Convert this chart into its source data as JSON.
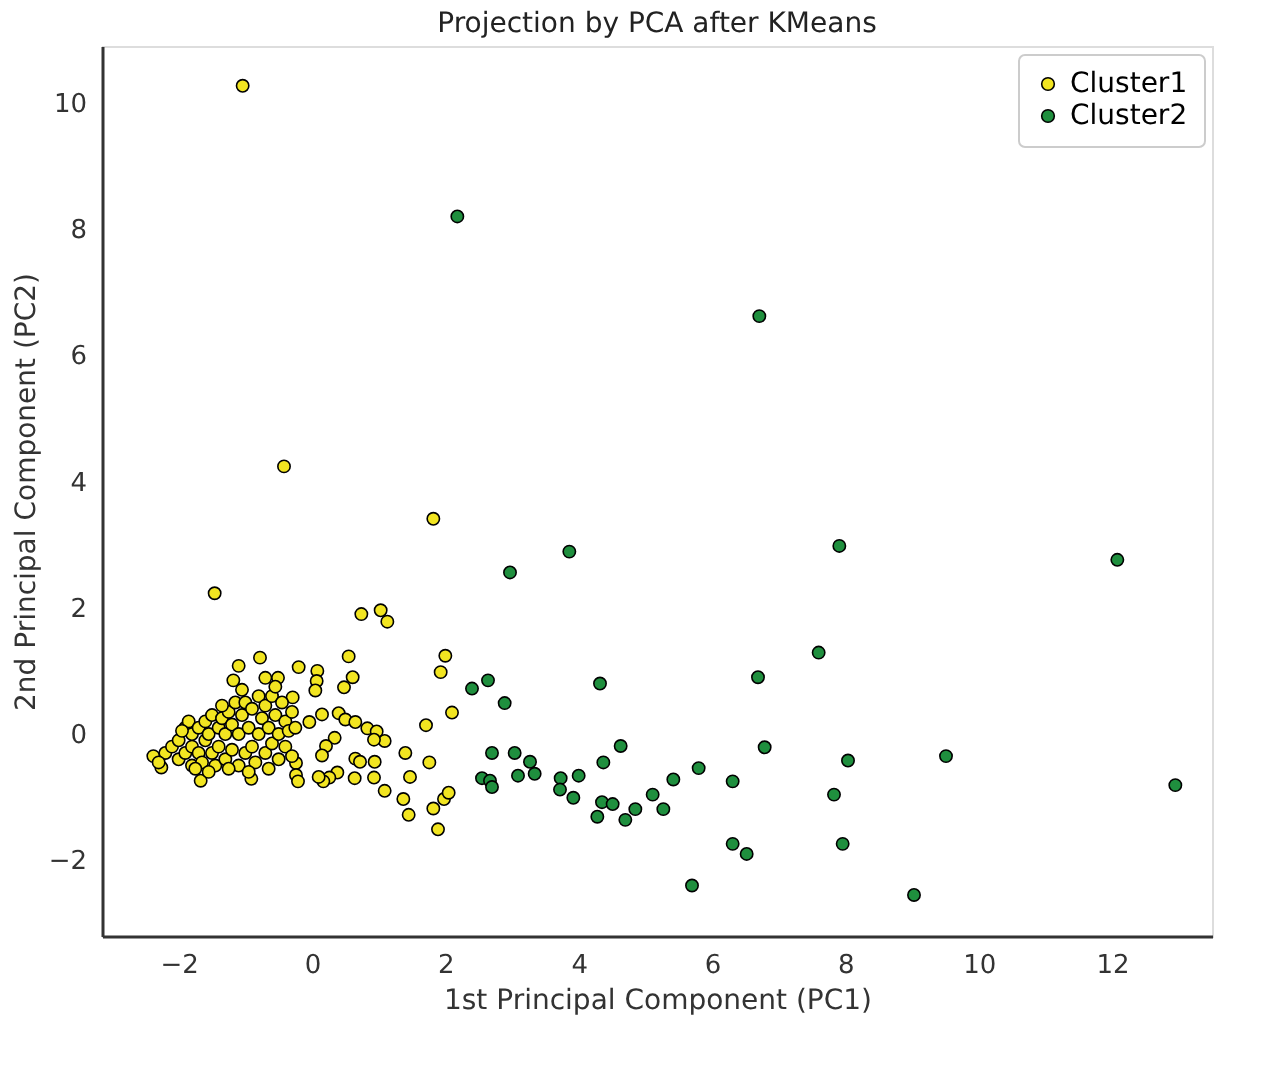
{
  "chart_data": {
    "type": "scatter",
    "title": "Projection by PCA after KMeans",
    "xlabel": "1st Principal Component (PC1)",
    "ylabel": "2nd Principal Component (PC2)",
    "xlim": [
      -3.15,
      13.5
    ],
    "ylim": [
      -3.2,
      10.9
    ],
    "xticks": [
      -2,
      0,
      2,
      4,
      6,
      8,
      10,
      12
    ],
    "yticks": [
      -2,
      0,
      2,
      4,
      6,
      8,
      10
    ],
    "grid": false,
    "legend": "top right",
    "marker": "circle",
    "series": [
      {
        "name": "Cluster1",
        "color": "#f2e521",
        "x": [
          -1.04,
          -0.42,
          1.82,
          -1.46,
          0.74,
          1.03,
          1.13,
          2.0,
          1.93,
          2.1,
          1.71,
          1.4,
          1.76,
          1.47,
          1.09,
          1.37,
          1.45,
          1.82,
          1.98,
          2.05,
          1.89,
          0.55,
          0.61,
          0.48,
          -0.2,
          0.08,
          0.07,
          0.05,
          -0.29,
          -0.78,
          -1.1,
          -1.18,
          -0.7,
          -0.51,
          -0.04,
          0.15,
          0.4,
          0.5,
          0.65,
          0.83,
          0.97,
          1.09,
          0.93,
          0.34,
          0.21,
          0.15,
          0.65,
          0.72,
          0.94,
          0.64,
          0.93,
          0.38,
          0.26,
          0.17,
          0.1,
          -0.24,
          -0.24,
          -0.21,
          -0.91,
          -1.67,
          -2.26,
          -2.38,
          -2.2,
          -2.1,
          -2.0,
          -2.0,
          -1.9,
          -1.9,
          -1.85,
          -1.8,
          -1.8,
          -1.8,
          -1.7,
          -1.7,
          -1.65,
          -1.6,
          -1.6,
          -1.55,
          -1.5,
          -1.5,
          -1.45,
          -1.4,
          -1.4,
          -1.35,
          -1.3,
          -1.3,
          -1.25,
          -1.2,
          -1.2,
          -1.15,
          -1.1,
          -1.1,
          -1.05,
          -1.0,
          -1.0,
          -0.95,
          -0.9,
          -0.9,
          -0.85,
          -0.8,
          -0.8,
          -0.75,
          -0.7,
          -0.7,
          -0.65,
          -0.6,
          -0.6,
          -0.55,
          -0.5,
          -0.5,
          -0.45,
          -0.4,
          -0.4,
          -0.35,
          -0.3,
          -0.3,
          -0.25,
          -1.75,
          -1.55,
          -1.25,
          -0.95,
          -0.65,
          -2.3,
          -1.95,
          -1.35,
          -1.05,
          -0.55
        ],
        "values": [
          10.27,
          4.24,
          3.41,
          2.23,
          1.9,
          1.96,
          1.78,
          1.24,
          0.98,
          0.34,
          0.14,
          -0.3,
          -0.45,
          -0.68,
          -0.9,
          -1.03,
          -1.28,
          -1.18,
          -1.03,
          -0.93,
          -1.51,
          1.23,
          0.9,
          0.74,
          1.06,
          1.0,
          0.84,
          0.69,
          0.58,
          1.21,
          1.08,
          0.85,
          0.89,
          0.89,
          0.19,
          0.31,
          0.33,
          0.23,
          0.19,
          0.09,
          0.04,
          -0.11,
          -0.09,
          -0.06,
          -0.19,
          -0.34,
          -0.39,
          -0.44,
          -0.44,
          -0.7,
          -0.69,
          -0.61,
          -0.69,
          -0.75,
          -0.68,
          -0.46,
          -0.65,
          -0.75,
          -0.71,
          -0.74,
          -0.53,
          -0.35,
          -0.3,
          -0.2,
          -0.4,
          -0.1,
          -0.3,
          0.1,
          0.2,
          -0.5,
          -0.2,
          0.0,
          -0.3,
          0.1,
          -0.45,
          -0.1,
          0.2,
          0.0,
          -0.3,
          0.3,
          -0.5,
          -0.2,
          0.1,
          0.25,
          -0.4,
          0.0,
          0.35,
          -0.25,
          0.15,
          0.5,
          -0.5,
          0.0,
          0.3,
          -0.3,
          0.5,
          0.1,
          -0.2,
          0.4,
          -0.45,
          0.0,
          0.6,
          0.25,
          -0.3,
          0.45,
          0.1,
          -0.15,
          0.6,
          0.3,
          -0.4,
          0.0,
          0.5,
          0.2,
          -0.2,
          0.05,
          0.35,
          -0.35,
          0.1,
          -0.55,
          -0.6,
          -0.55,
          -0.6,
          -0.55,
          -0.45,
          0.05,
          0.45,
          0.7,
          0.75
        ]
      },
      {
        "name": "Cluster2",
        "color": "#1f8f3e",
        "x": [
          2.18,
          6.71,
          2.97,
          3.86,
          7.91,
          12.08,
          7.6,
          6.69,
          4.32,
          2.4,
          2.64,
          2.89,
          4.63,
          6.79,
          2.7,
          3.04,
          3.27,
          3.34,
          3.09,
          2.55,
          2.67,
          2.7,
          3.73,
          4.0,
          3.72,
          3.92,
          4.37,
          4.35,
          4.51,
          4.28,
          4.7,
          4.85,
          5.11,
          5.27,
          5.42,
          5.8,
          6.31,
          8.04,
          9.51,
          12.95,
          7.83,
          7.96,
          6.31,
          6.52,
          5.7,
          9.03
        ],
        "values": [
          8.2,
          6.62,
          2.56,
          2.89,
          2.98,
          2.76,
          1.29,
          0.9,
          0.8,
          0.72,
          0.85,
          0.49,
          -0.19,
          -0.21,
          -0.3,
          -0.3,
          -0.44,
          -0.63,
          -0.66,
          -0.7,
          -0.74,
          -0.84,
          -0.7,
          -0.66,
          -0.88,
          -1.01,
          -0.45,
          -1.08,
          -1.11,
          -1.31,
          -1.36,
          -1.19,
          -0.96,
          -1.19,
          -0.72,
          -0.54,
          -0.75,
          -0.42,
          -0.35,
          -0.81,
          -0.96,
          -1.74,
          -1.74,
          -1.9,
          -2.4,
          -2.55
        ]
      }
    ]
  }
}
